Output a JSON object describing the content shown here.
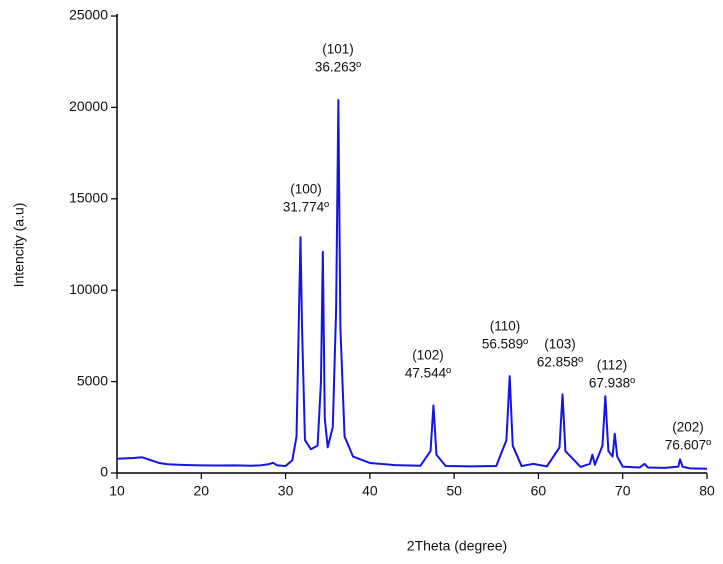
{
  "chart_data": {
    "type": "line",
    "x_label": "2Theta (degree)",
    "y_label": "Intencity (a.u)",
    "xlim": [
      10,
      80
    ],
    "xticks": [
      10,
      20,
      30,
      40,
      50,
      60,
      70,
      80
    ],
    "ylim": [
      0,
      25000
    ],
    "yticks": [
      0,
      5000,
      10000,
      15000,
      20000,
      25000
    ],
    "x": [
      10,
      11,
      12,
      13,
      14,
      15,
      16,
      18,
      20,
      22,
      24,
      26,
      27,
      28,
      28.5,
      29,
      30,
      30.8,
      31.3,
      31.6,
      31.77,
      31.95,
      32.3,
      33,
      33.8,
      34.2,
      34.42,
      34.65,
      35,
      35.6,
      36.0,
      36.263,
      36.5,
      37,
      38,
      40,
      43,
      46,
      47.2,
      47.544,
      47.9,
      49,
      52,
      55,
      56.2,
      56.589,
      56.95,
      58,
      59.4,
      61,
      62.5,
      62.858,
      63.2,
      65,
      66.1,
      66.4,
      66.7,
      67.6,
      67.938,
      68.3,
      68.8,
      69.05,
      69.35,
      70,
      72,
      72.6,
      73,
      75,
      76.6,
      76.8,
      77.1,
      78,
      80
    ],
    "series": [
      {
        "color": "#1414e6",
        "values": [
          780,
          800,
          820,
          860,
          700,
          550,
          480,
          440,
          420,
          410,
          420,
          400,
          420,
          480,
          560,
          420,
          380,
          700,
          2000,
          9000,
          12900,
          8000,
          1800,
          1300,
          1500,
          5000,
          12100,
          3000,
          1400,
          2500,
          9000,
          20400,
          8000,
          2000,
          900,
          550,
          430,
          400,
          1200,
          3700,
          1000,
          380,
          360,
          380,
          1800,
          5300,
          1500,
          380,
          500,
          360,
          1400,
          4300,
          1200,
          330,
          500,
          1000,
          450,
          1500,
          4200,
          1200,
          900,
          2150,
          900,
          350,
          300,
          500,
          300,
          280,
          350,
          750,
          350,
          250,
          230
        ]
      }
    ],
    "annotations": [
      {
        "plane": "(100)",
        "angle": "31.774º"
      },
      {
        "plane": "(101)",
        "angle": "36.263º"
      },
      {
        "plane": "(102)",
        "angle": "47.544º"
      },
      {
        "plane": "(110)",
        "angle": "56.589º"
      },
      {
        "plane": "(103)",
        "angle": "62.858º"
      },
      {
        "plane": "(112)",
        "angle": "67.938º"
      },
      {
        "plane": "(202)",
        "angle": "76.607º"
      }
    ]
  }
}
